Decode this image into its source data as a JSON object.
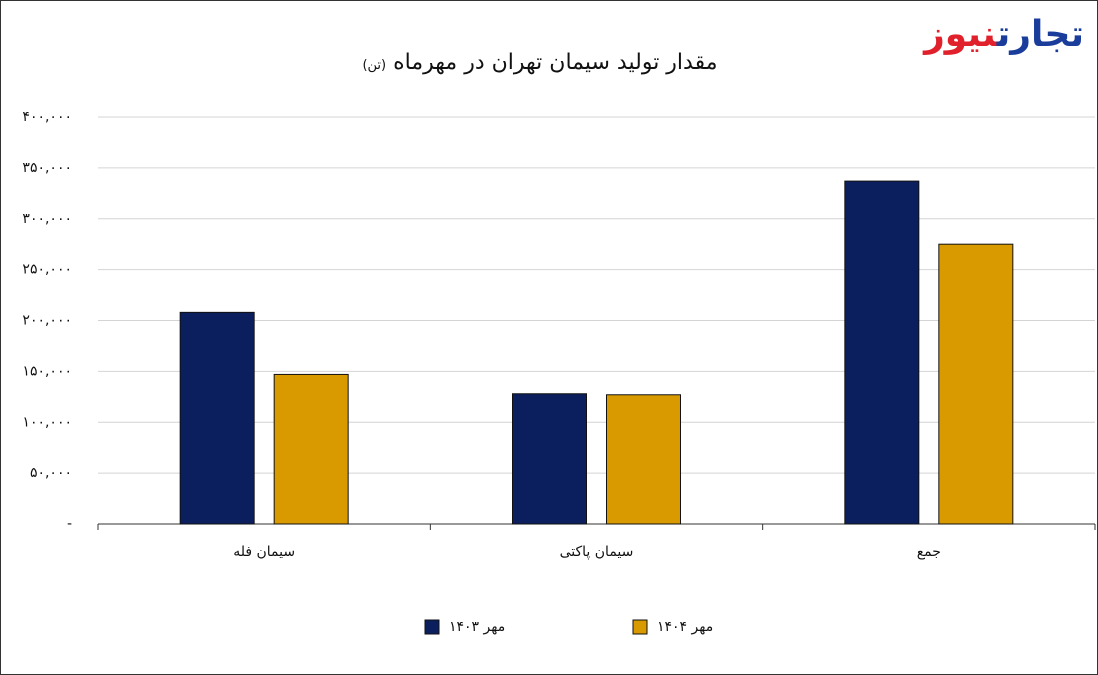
{
  "logo": {
    "first": "تجارت",
    "second": "نیوز"
  },
  "chart_data": {
    "type": "bar",
    "title": "مقدار تولید سیمان تهران در مهرماه",
    "unit": "(تن)",
    "categories": [
      "سیمان فله",
      "سیمان پاکتی",
      "جمع"
    ],
    "series": [
      {
        "name": "مهر ۱۴۰۳",
        "color": "#0b1f5e",
        "values": [
          208000,
          128000,
          337000
        ]
      },
      {
        "name": "مهر ۱۴۰۴",
        "color": "#d99a00",
        "values": [
          147000,
          127000,
          275000
        ]
      }
    ],
    "ylim": [
      0,
      400000
    ],
    "yticks": [
      {
        "value": 0,
        "label": "-"
      },
      {
        "value": 50000,
        "label": "۵۰,۰۰۰"
      },
      {
        "value": 100000,
        "label": "۱۰۰,۰۰۰"
      },
      {
        "value": 150000,
        "label": "۱۵۰,۰۰۰"
      },
      {
        "value": 200000,
        "label": "۲۰۰,۰۰۰"
      },
      {
        "value": 250000,
        "label": "۲۵۰,۰۰۰"
      },
      {
        "value": 300000,
        "label": "۳۰۰,۰۰۰"
      },
      {
        "value": 350000,
        "label": "۳۵۰,۰۰۰"
      },
      {
        "value": 400000,
        "label": "۴۰۰,۰۰۰"
      }
    ],
    "grid": true,
    "legend": "bottom"
  }
}
